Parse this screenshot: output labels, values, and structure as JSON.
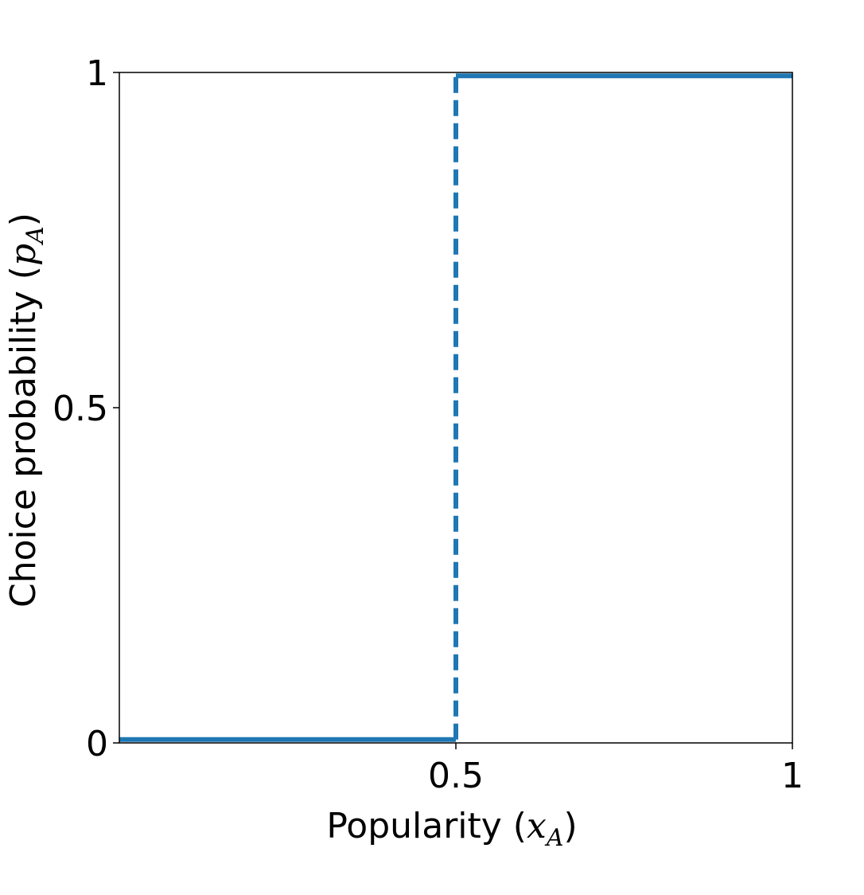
{
  "chart_data": {
    "type": "line",
    "xlabel": [
      "Popularity (",
      "x",
      "A",
      ")"
    ],
    "ylabel": [
      "Choice probability (",
      "p",
      "A",
      ")"
    ],
    "xlim": [
      0,
      1
    ],
    "xticks": [
      0.5,
      1
    ],
    "ylim": [
      0,
      1
    ],
    "yticks": [
      0,
      0.5,
      1
    ],
    "grid": false,
    "series": [
      {
        "color": "#1f77b4",
        "dashed": false,
        "x": [
          0,
          0.5
        ],
        "values": [
          0.005,
          0.005
        ]
      },
      {
        "color": "#1f77b4",
        "dashed": true,
        "x": [
          0.5,
          0.5
        ],
        "values": [
          0.005,
          0.995
        ]
      },
      {
        "color": "#1f77b4",
        "dashed": false,
        "x": [
          0.5,
          1
        ],
        "values": [
          0.995,
          0.995
        ]
      }
    ]
  }
}
